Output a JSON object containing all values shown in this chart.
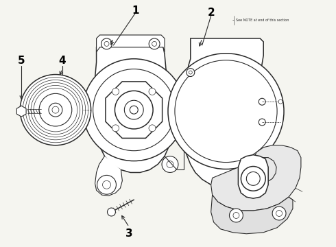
{
  "background_color": "#f5f5f0",
  "line_color": "#2a2a2a",
  "label_color": "#000000",
  "label_fontsize": 11,
  "label_fontweight": "bold",
  "figsize": [
    4.9,
    3.6
  ],
  "dpi": 100,
  "note_text": "See NOTE at end of this section",
  "note_fontsize": 3.5
}
